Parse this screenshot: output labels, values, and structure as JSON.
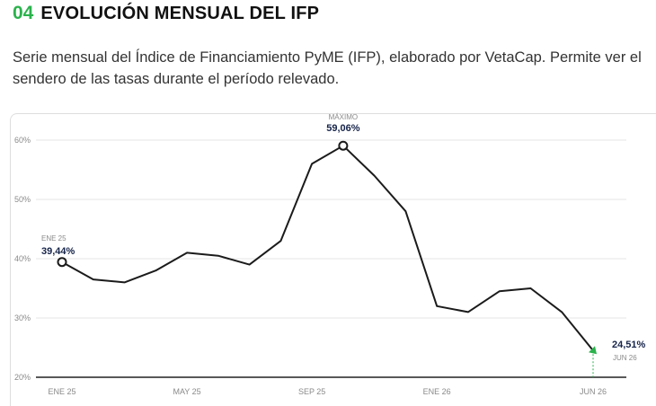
{
  "section": {
    "number": "04",
    "title": "EVOLUCIÓN MENSUAL DEL IFP",
    "description": "Serie mensual del Índice de Financiamiento PyME (IFP), elaborado por VetaCap. Permite ver el sendero de las tasas durante el período relevado."
  },
  "colors": {
    "accent": "#2bb24c",
    "line": "#1b1b1b",
    "label_dark": "#16244a",
    "grid": "#e6e6e6",
    "tick": "#8a8a8a"
  },
  "chart_data": {
    "type": "line",
    "title": "",
    "xlabel": "",
    "ylabel": "",
    "ylim": [
      20,
      60
    ],
    "yticks": [
      20,
      30,
      40,
      50,
      60
    ],
    "ytick_labels": [
      "20%",
      "30%",
      "40%",
      "50%",
      "60%"
    ],
    "x": [
      "ENE 25",
      "FEB 25",
      "MAR 25",
      "ABR 25",
      "MAY 25",
      "JUN 25",
      "JUL 25",
      "AGO 25",
      "SEP 25",
      "OCT 25",
      "NOV 25",
      "DIC 25",
      "ENE 26",
      "FEB 26",
      "MAR 26",
      "ABR 26",
      "MAY 26",
      "JUN 26"
    ],
    "xtick_labels": [
      "ENE 25",
      "MAY 25",
      "SEP 25",
      "ENE 26",
      "JUN 26"
    ],
    "series": [
      {
        "values": [
          39.44,
          36.5,
          36.0,
          38.0,
          41.0,
          40.5,
          39.0,
          43.0,
          56.0,
          59.06,
          54.0,
          48.0,
          32.0,
          31.0,
          34.5,
          35.0,
          31.0,
          24.51
        ]
      }
    ],
    "grid": true,
    "annotations": [
      {
        "small": "ENE 25",
        "value": "39,44%",
        "index": 0
      },
      {
        "small": "MÁXIMO",
        "value": "59,06%",
        "index": 9
      },
      {
        "small": "JUN 26",
        "value": "24,51%",
        "index": 17
      }
    ]
  }
}
